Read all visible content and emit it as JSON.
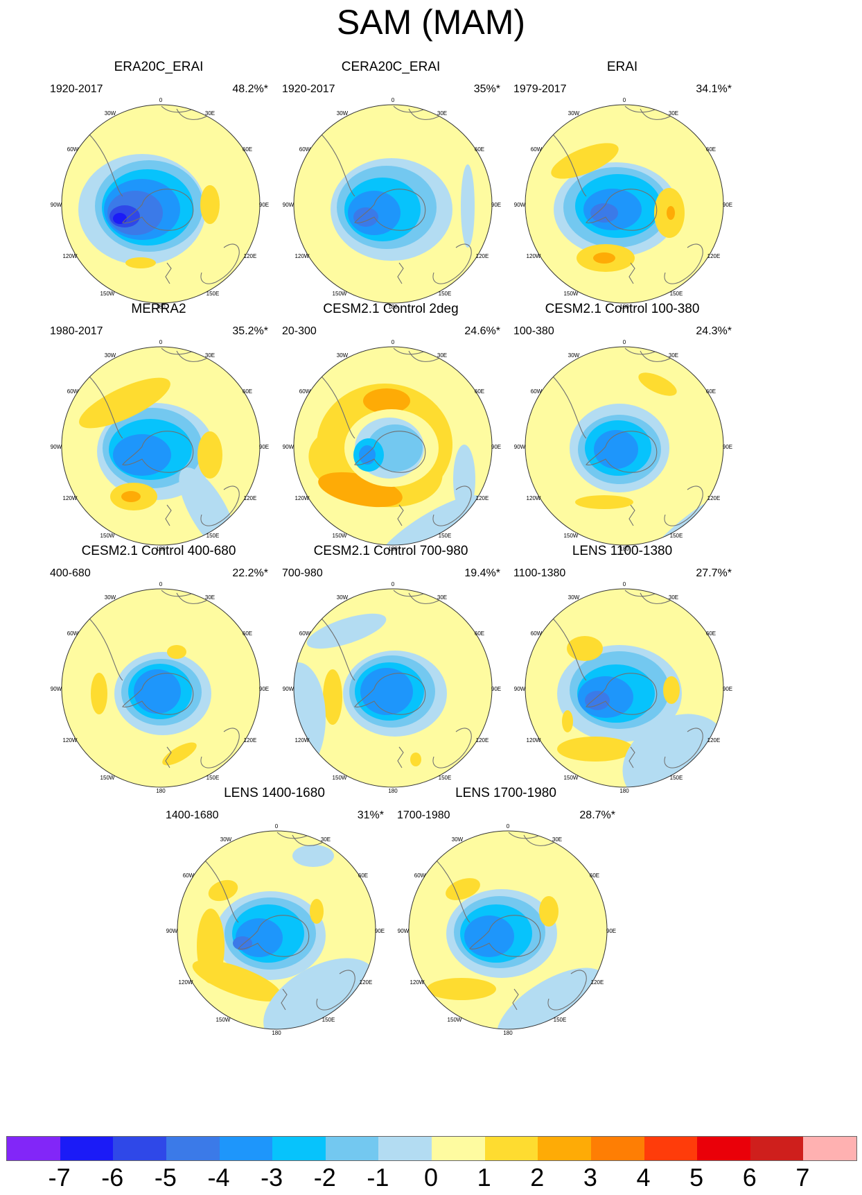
{
  "title": "SAM (MAM)",
  "colors": {
    "m7": "#8226f8",
    "m6": "#1b1bf7",
    "m5": "#2f48e8",
    "m4": "#3b7ae8",
    "m3": "#1e96fb",
    "m2": "#07c3fc",
    "m1": "#73c8f0",
    "m0": "#b3dcf2",
    "p0": "#fefba0",
    "p1": "#fedc30",
    "p2": "#feab06",
    "p3": "#fe7e04",
    "p4": "#ff3c0a",
    "p5": "#ea0009",
    "p6": "#cf1f1c",
    "p7": "#ffb1b1",
    "land": "#707070",
    "rim": "#333333"
  },
  "map_labels": {
    "n0": "0",
    "n30e": "30E",
    "n60e": "60E",
    "n90e": "90E",
    "n120e": "120E",
    "n150e": "150E",
    "n180": "180",
    "n150w": "150W",
    "n120w": "120W",
    "n90w": "90W",
    "n60w": "60W",
    "n30w": "30W"
  },
  "panels": [
    {
      "title": "ERA20C_ERAI",
      "period": "1920-2017",
      "variance": "48.2%*"
    },
    {
      "title": "CERA20C_ERAI",
      "period": "1920-2017",
      "variance": "35%*"
    },
    {
      "title": "ERAI",
      "period": "1979-2017",
      "variance": "34.1%*"
    },
    {
      "title": "MERRA2",
      "period": "1980-2017",
      "variance": "35.2%*"
    },
    {
      "title": "CESM2.1 Control 2deg",
      "period": "20-300",
      "variance": "24.6%*"
    },
    {
      "title": "CESM2.1 Control 100-380",
      "period": "100-380",
      "variance": "24.3%*"
    },
    {
      "title": "CESM2.1 Control 400-680",
      "period": "400-680",
      "variance": "22.2%*"
    },
    {
      "title": "CESM2.1 Control 700-980",
      "period": "700-980",
      "variance": "19.4%*"
    },
    {
      "title": "LENS 1100-1380",
      "period": "1100-1380",
      "variance": "27.7%*"
    },
    {
      "title": "LENS 1400-1680",
      "period": "1400-1680",
      "variance": "31%*"
    },
    {
      "title": "LENS 1700-1980",
      "period": "1700-1980",
      "variance": "28.7%*"
    }
  ],
  "colorbar": {
    "labels": [
      "-7",
      "-6",
      "-5",
      "-4",
      "-3",
      "-2",
      "-1",
      "0",
      "1",
      "2",
      "3",
      "4",
      "5",
      "6",
      "7"
    ],
    "colors": [
      "#8226f8",
      "#1b1bf7",
      "#2f48e8",
      "#3b7ae8",
      "#1e96fb",
      "#07c3fc",
      "#73c8f0",
      "#b3dcf2",
      "#fefba0",
      "#fedc30",
      "#feab06",
      "#fe7e04",
      "#ff3c0a",
      "#ea0009",
      "#cf1f1c",
      "#ffb1b1"
    ]
  }
}
